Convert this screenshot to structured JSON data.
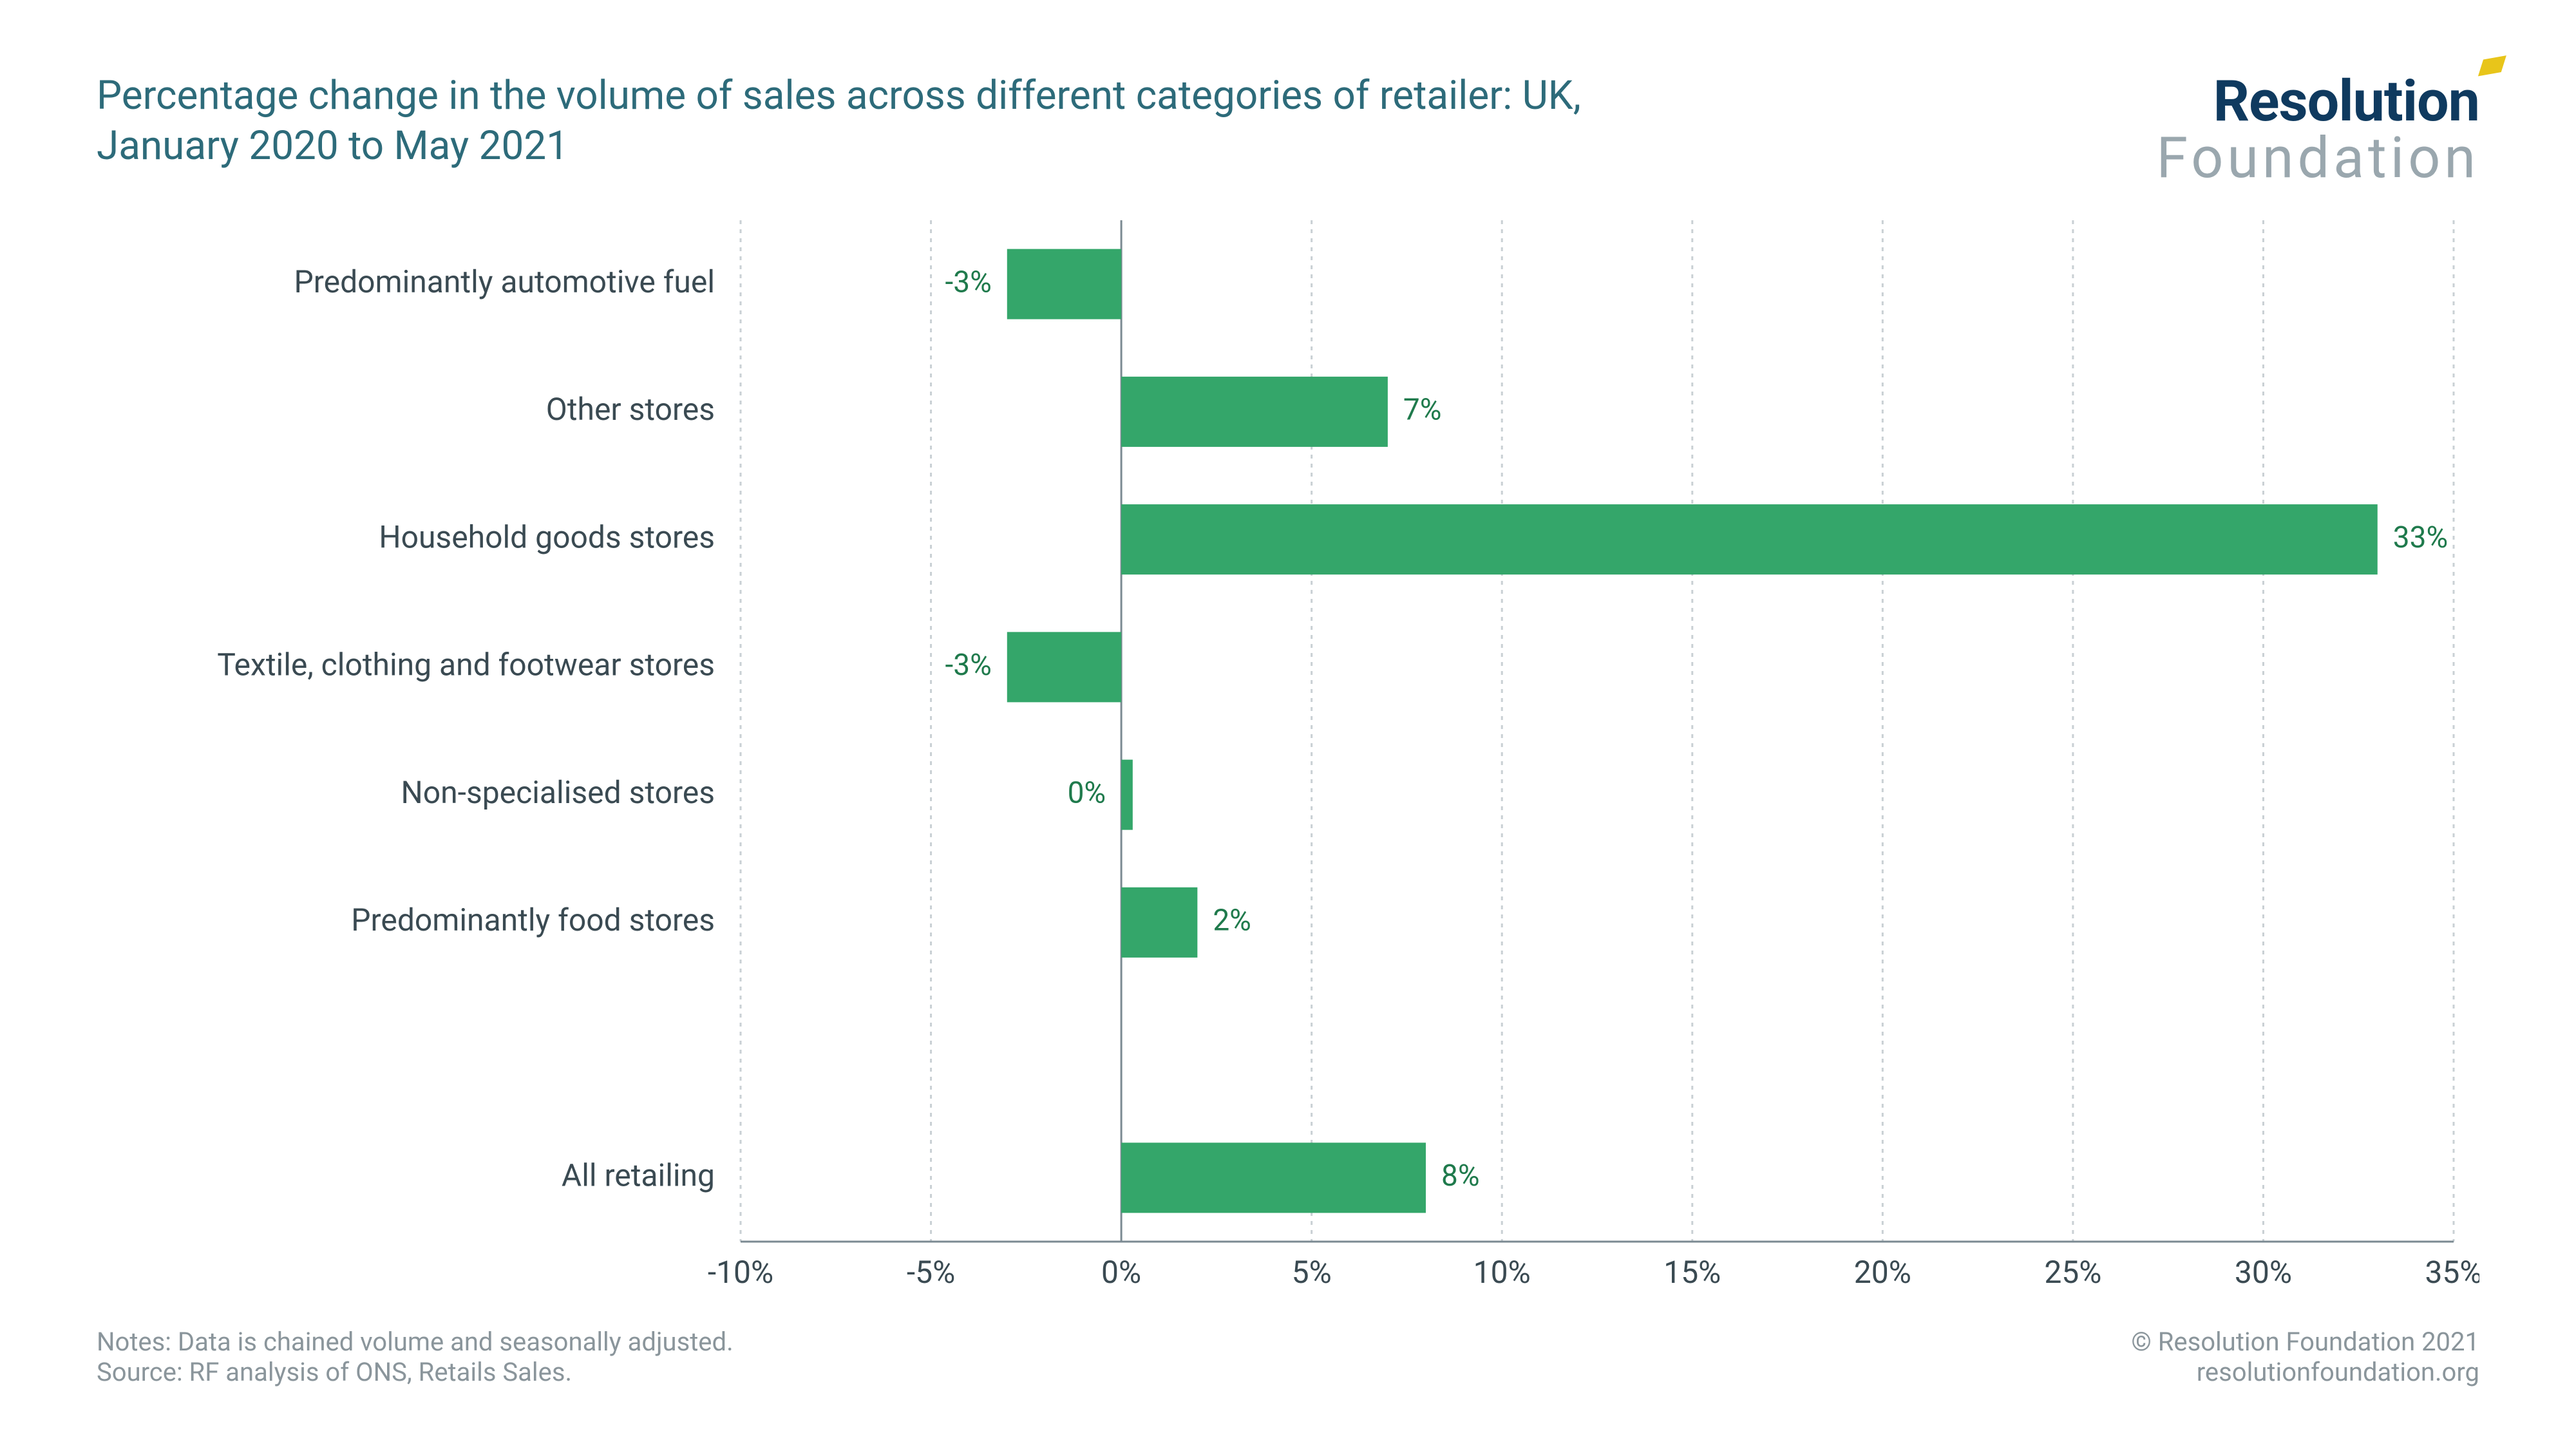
{
  "title": "Percentage change in the volume of sales across different categories of retailer: UK, January 2020 to May 2021",
  "logo": {
    "line1": "Resolution",
    "line2": "Foundation"
  },
  "footer": {
    "notes_line1": "Notes: Data is chained volume and seasonally adjusted.",
    "notes_line2": "Source: RF analysis of ONS, Retails Sales.",
    "copyright": "© Resolution Foundation 2021",
    "url": "resolutionfoundation.org"
  },
  "chart": {
    "type": "bar-horizontal",
    "x_min": -10,
    "x_max": 35,
    "x_tick_step": 5,
    "x_tick_format": "percent",
    "zero_line_color": "#7b8a92",
    "grid_color": "#c9d0d4",
    "grid_dash": "6,8",
    "axis_line_color": "#7b8a92",
    "bar_color": "#34a66a",
    "value_label_color": "#1f7a4c",
    "tick_label_color": "#3a4a52",
    "category_label_color": "#3a4a52",
    "label_fontsize": 48,
    "tick_fontsize": 48,
    "value_fontsize": 46,
    "bar_thickness_ratio": 0.55,
    "row_gap_after_index": 5,
    "categories": [
      {
        "label": "Predominantly automotive fuel",
        "value": -3,
        "value_label": "-3%"
      },
      {
        "label": "Other stores",
        "value": 7,
        "value_label": "7%"
      },
      {
        "label": "Household goods stores",
        "value": 33,
        "value_label": "33%"
      },
      {
        "label": "Textile, clothing and footwear stores",
        "value": -3,
        "value_label": "-3%"
      },
      {
        "label": "Non-specialised stores",
        "value": 0.3,
        "value_label": "0%",
        "label_offset_sign": -1
      },
      {
        "label": "Predominantly food stores",
        "value": 2,
        "value_label": "2%"
      },
      {
        "label": "All retailing",
        "value": 8,
        "value_label": "8%"
      }
    ]
  }
}
